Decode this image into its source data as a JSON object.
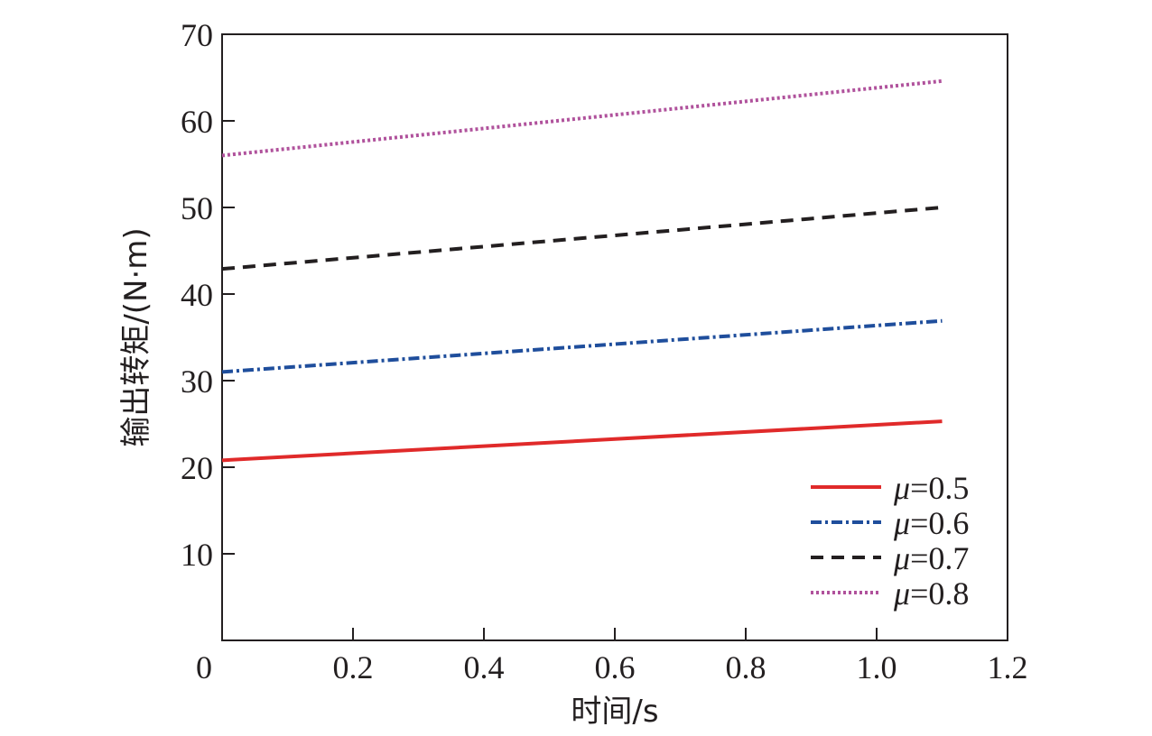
{
  "chart_data": {
    "type": "line",
    "xlabel": "时间/s",
    "ylabel": "输出转矩/(N·m)",
    "xlim": [
      0,
      1.2
    ],
    "ylim": [
      0,
      70
    ],
    "x_ticks": [
      "0",
      "0.2",
      "0.4",
      "0.6",
      "0.8",
      "1.0",
      "1.2"
    ],
    "y_ticks": [
      "10",
      "20",
      "30",
      "40",
      "50",
      "60",
      "70"
    ],
    "grid": false,
    "legend_position": "bottom-right",
    "legend_symbol": "μ",
    "series": [
      {
        "name": "=0.5",
        "color": "#e02a2a",
        "style": "solid",
        "x": [
          0,
          1.1
        ],
        "y": [
          20.8,
          25.3
        ]
      },
      {
        "name": "=0.6",
        "color": "#1f4e9c",
        "style": "dashdot",
        "x": [
          0,
          1.1
        ],
        "y": [
          31.0,
          36.9
        ]
      },
      {
        "name": "=0.7",
        "color": "#231f20",
        "style": "dashed",
        "x": [
          0,
          1.1
        ],
        "y": [
          42.9,
          50.0
        ]
      },
      {
        "name": "=0.8",
        "color": "#b0529c",
        "style": "dotted",
        "x": [
          0,
          1.1
        ],
        "y": [
          56.0,
          64.6
        ]
      }
    ]
  }
}
